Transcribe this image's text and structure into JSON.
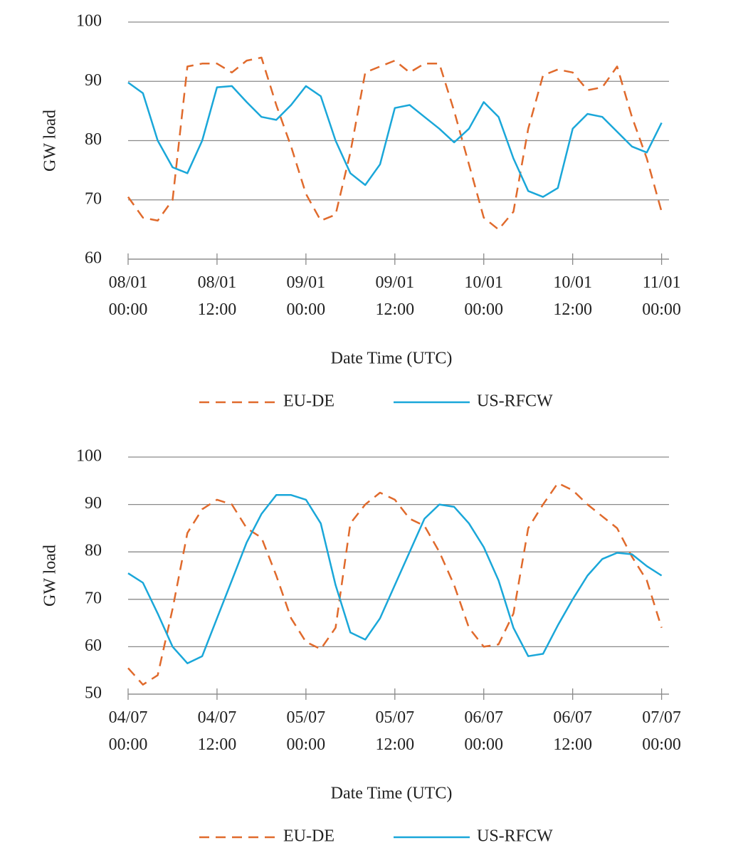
{
  "chart_data": [
    {
      "type": "line",
      "xlabel": "Date Time (UTC)",
      "ylabel": "GW load",
      "grid": true,
      "legend": "bottom",
      "x": [
        "08/01 00:00",
        "08/01 02:00",
        "08/01 04:00",
        "08/01 06:00",
        "08/01 08:00",
        "08/01 10:00",
        "08/01 12:00",
        "08/01 14:00",
        "08/01 16:00",
        "08/01 18:00",
        "08/01 20:00",
        "08/01 22:00",
        "09/01 00:00",
        "09/01 02:00",
        "09/01 04:00",
        "09/01 06:00",
        "09/01 08:00",
        "09/01 10:00",
        "09/01 12:00",
        "09/01 14:00",
        "09/01 16:00",
        "09/01 18:00",
        "09/01 20:00",
        "09/01 22:00",
        "10/01 00:00",
        "10/01 02:00",
        "10/01 04:00",
        "10/01 06:00",
        "10/01 08:00",
        "10/01 10:00",
        "10/01 12:00",
        "10/01 14:00",
        "10/01 16:00",
        "10/01 18:00",
        "10/01 20:00",
        "10/01 22:00",
        "11/01 00:00"
      ],
      "series": [
        {
          "name": "EU-DE",
          "color": "#e06a2c",
          "dashed": true,
          "values": [
            70.5,
            67,
            66.5,
            70,
            92.5,
            93,
            93,
            91.5,
            93.5,
            94,
            86,
            79,
            71,
            66.5,
            67.5,
            78,
            91.5,
            92.5,
            93.5,
            91.5,
            93,
            93,
            85,
            76,
            67,
            65,
            68,
            82,
            91,
            92,
            91.5,
            88.5,
            89,
            92.5,
            84,
            77,
            68
          ]
        },
        {
          "name": "US-RFCW",
          "color": "#1aa7d9",
          "dashed": false,
          "values": [
            89.8,
            88,
            80,
            75.5,
            74.5,
            80,
            89,
            89.2,
            86.5,
            84,
            83.5,
            86,
            89.2,
            87.5,
            80,
            74.5,
            72.5,
            76,
            85.5,
            86,
            84,
            82,
            79.7,
            82,
            86.5,
            84,
            77,
            71.5,
            70.5,
            72,
            82,
            84.5,
            84,
            81.5,
            79,
            78,
            83
          ]
        }
      ],
      "xlim": [
        "08/01 00:00",
        "11/01 01:00"
      ],
      "xticks": [
        "08/01 00:00",
        "08/01 12:00",
        "09/01 00:00",
        "09/01 12:00",
        "10/01 00:00",
        "10/01 12:00",
        "11/01 00:00"
      ],
      "ylim": [
        60,
        100
      ],
      "yticks": [
        60,
        70,
        80,
        90,
        100
      ]
    },
    {
      "type": "line",
      "xlabel": "Date Time (UTC)",
      "ylabel": "GW load",
      "grid": true,
      "legend": "bottom",
      "x": [
        "04/07 00:00",
        "04/07 02:00",
        "04/07 04:00",
        "04/07 06:00",
        "04/07 08:00",
        "04/07 10:00",
        "04/07 12:00",
        "04/07 14:00",
        "04/07 16:00",
        "04/07 18:00",
        "04/07 20:00",
        "04/07 22:00",
        "05/07 00:00",
        "05/07 02:00",
        "05/07 04:00",
        "05/07 06:00",
        "05/07 08:00",
        "05/07 10:00",
        "05/07 12:00",
        "05/07 14:00",
        "05/07 16:00",
        "05/07 18:00",
        "05/07 20:00",
        "05/07 22:00",
        "06/07 00:00",
        "06/07 02:00",
        "06/07 04:00",
        "06/07 06:00",
        "06/07 08:00",
        "06/07 10:00",
        "06/07 12:00",
        "06/07 14:00",
        "06/07 16:00",
        "06/07 18:00",
        "06/07 20:00",
        "06/07 22:00",
        "07/07 00:00"
      ],
      "series": [
        {
          "name": "EU-DE",
          "color": "#e06a2c",
          "dashed": true,
          "values": [
            55.5,
            52,
            54,
            68,
            84,
            89,
            91,
            90,
            85,
            83,
            75,
            66,
            61,
            59.5,
            64,
            86,
            90,
            92.5,
            91,
            87,
            85.5,
            80,
            73,
            64,
            60,
            60.5,
            67,
            85,
            90,
            94.5,
            93,
            90,
            87.5,
            85,
            79,
            74,
            64
          ]
        },
        {
          "name": "US-RFCW",
          "color": "#1aa7d9",
          "dashed": false,
          "values": [
            75.5,
            73.5,
            67,
            60,
            56.5,
            58,
            66,
            74,
            82,
            88,
            92,
            92,
            91,
            86,
            73,
            63,
            61.5,
            66,
            73,
            80,
            87,
            90,
            89.5,
            86,
            81,
            74,
            64,
            58,
            58.5,
            64.5,
            70,
            75,
            78.5,
            79.8,
            79.5,
            77,
            75
          ]
        }
      ],
      "xlim": [
        "04/07 00:00",
        "07/07 01:00"
      ],
      "xticks": [
        "04/07 00:00",
        "04/07 12:00",
        "05/07 00:00",
        "05/07 12:00",
        "06/07 00:00",
        "06/07 12:00",
        "07/07 00:00"
      ],
      "ylim": [
        50,
        100
      ],
      "yticks": [
        50,
        60,
        70,
        80,
        90,
        100
      ]
    }
  ]
}
